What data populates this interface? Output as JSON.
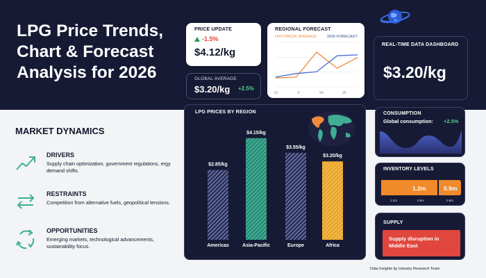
{
  "header": {
    "title": "LPG Price Trends, Chart & Forecast Analysis for 2026"
  },
  "price_update": {
    "label": "PRICE UPDATE",
    "change": "-1.5%",
    "value": "$4.12/kg"
  },
  "global_average": {
    "label": "GLOBAL AVERAGE",
    "value": "$3.20/kg",
    "change": "+2.5%"
  },
  "regional_forecast": {
    "label": "REGIONAL FORECAST",
    "legend_historical": "HISTORICAL AVERAGE",
    "legend_forecast": "2026 FORECAST",
    "x_ticks": [
      "19",
      "0",
      "54",
      "25"
    ],
    "historical": [
      20,
      22,
      78,
      42,
      66
    ],
    "forecast": [
      22,
      30,
      34,
      70,
      72
    ],
    "y_range": [
      0,
      100
    ]
  },
  "realtime": {
    "label": "REAL-TIME DATA DASHBOARD",
    "value": "$3.20/kg"
  },
  "market_dynamics": {
    "title": "MARKET DYNAMICS",
    "items": [
      {
        "heading": "DRIVERS",
        "text": "Supply chain optimization, government regulations, ergy demand shifts.",
        "icon": "trend-up-icon"
      },
      {
        "heading": "RESTRAINTS",
        "text": "Competition from alternative fuels, geopolitical tensions.",
        "icon": "swap-arrows-icon"
      },
      {
        "heading": "OPPORTUNITIES",
        "text": "Emerging markets, technological advancements, sustainability focus.",
        "icon": "cycle-arrows-icon"
      }
    ]
  },
  "chart_data": {
    "type": "bar",
    "title": "LPG PRICES BY REGION",
    "categories": [
      "Americas",
      "Asia-Pacific",
      "Europe",
      "Africa"
    ],
    "values": [
      2.85,
      4.15,
      3.55,
      3.2
    ],
    "value_labels": [
      "$2.85/kg",
      "$4.15/kg",
      "$3.55/kg",
      "$3.20/kg"
    ],
    "colors": [
      "#8a93c9",
      "#3fae94",
      "#8a93c9",
      "#f4b53f"
    ],
    "ylim": [
      0,
      4.2
    ],
    "xlabel": "",
    "ylabel": ""
  },
  "consumption": {
    "label": "CONSUMPTION",
    "subtitle": "Global consumption:",
    "change": "+2.5%"
  },
  "inventory": {
    "label": "INVENTORY LEVELS",
    "bars": [
      {
        "label": "1.2m",
        "value": 1.2
      },
      {
        "label": "0.9m",
        "value": 0.9
      }
    ],
    "ticks": [
      "1.2m",
      "0.9m",
      "0.8m"
    ]
  },
  "supply": {
    "label": "SUPPLY",
    "alert": "Supply disruption in Middle East"
  },
  "footer": {
    "credit": "Data Insights by Industry Research Team"
  }
}
